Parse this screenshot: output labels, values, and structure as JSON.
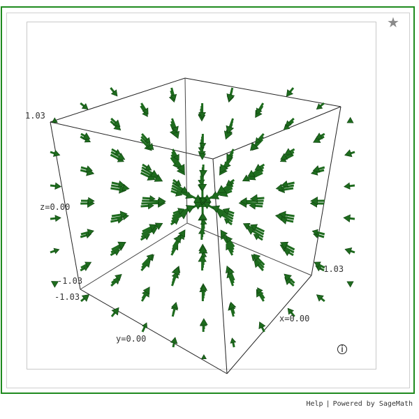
{
  "toolbar": {
    "star_icon": "star-icon"
  },
  "plot": {
    "axis_labels": {
      "x_tick_max": "-1.03",
      "x_label": "x=0.00",
      "y_tick_a": "-1.03",
      "y_tick_b": "-1.03",
      "y_label": "y=0.00",
      "z_tick_max": "1.03",
      "z_label": "z=0.00"
    },
    "arrow_color": "#1e6b1e",
    "info_icon": "info-icon"
  },
  "footer": {
    "help_label": "Help",
    "separator": "|",
    "powered_label": "Powered by SageMath"
  }
}
